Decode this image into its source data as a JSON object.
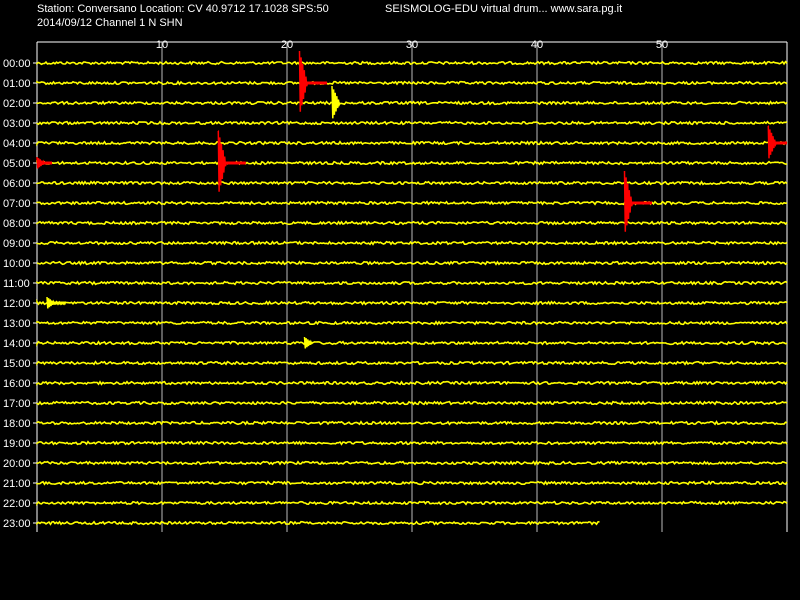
{
  "header": {
    "station_line": "Station: Conversano Location: CV 40.9712 17.1028 SPS:50",
    "date_line": "2014/09/12  Channel 1 N SHN",
    "title": "SEISMOLOG-EDU virtual drum... www.sara.pg.it"
  },
  "minute_ticks": [
    "10",
    "20",
    "30",
    "40",
    "50"
  ],
  "hour_labels": [
    "00:00",
    "01:00",
    "02:00",
    "03:00",
    "04:00",
    "05:00",
    "06:00",
    "07:00",
    "08:00",
    "09:00",
    "10:00",
    "11:00",
    "12:00",
    "13:00",
    "14:00",
    "15:00",
    "16:00",
    "17:00",
    "18:00",
    "19:00",
    "20:00",
    "21:00",
    "22:00",
    "23:00"
  ],
  "colors": {
    "background": "#000000",
    "trace": "#ffff00",
    "event": "#ff0000",
    "grid": "#ffffff",
    "text": "#ffffff"
  },
  "last_trace_end_minute": 45,
  "events": [
    {
      "hour": "01:00",
      "minute": 21.0,
      "color": "event",
      "amplitude": "large",
      "tail_minutes": 2.2
    },
    {
      "hour": "02:00",
      "minute": 23.6,
      "color": "trace",
      "amplitude": "medium",
      "tail_minutes": 0
    },
    {
      "hour": "04:00",
      "minute": 58.5,
      "color": "event",
      "amplitude": "medium",
      "tail_minutes": 1.5
    },
    {
      "hour": "05:00",
      "minute": 0.0,
      "color": "event",
      "amplitude": "small",
      "tail_minutes": 1.2
    },
    {
      "hour": "05:00",
      "minute": 14.5,
      "color": "event",
      "amplitude": "large",
      "tail_minutes": 2.2
    },
    {
      "hour": "07:00",
      "minute": 47.0,
      "color": "event",
      "amplitude": "large",
      "tail_minutes": 2.2
    },
    {
      "hour": "12:00",
      "minute": 0.8,
      "color": "trace",
      "amplitude": "small",
      "tail_minutes": 1.5
    },
    {
      "hour": "14:00",
      "minute": 21.4,
      "color": "trace",
      "amplitude": "small",
      "tail_minutes": 0
    }
  ]
}
